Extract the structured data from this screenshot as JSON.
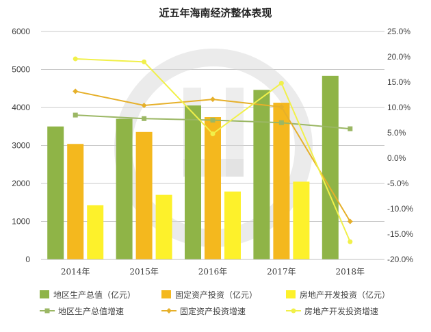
{
  "chart_data": {
    "type": "bar",
    "title": "近五年海南经济整体表现",
    "categories": [
      "2014年",
      "2015年",
      "2016年",
      "2017年",
      "2018年"
    ],
    "ylim_left": [
      0,
      6000
    ],
    "yticks_left": [
      "0",
      "1000",
      "2000",
      "3000",
      "4000",
      "5000",
      "6000"
    ],
    "ylim_right": [
      -20,
      25
    ],
    "yticks_right": [
      "-20.0%",
      "-15.0%",
      "-10.0%",
      "-5.0%",
      "0.0%",
      "5.0%",
      "10.0%",
      "15.0%",
      "20.0%",
      "25.0%"
    ],
    "grid": true,
    "legend_position": "bottom",
    "bar_series": [
      {
        "name": "地区生产总值（亿元）",
        "color": "#8fb447",
        "values": [
          3500,
          3702,
          4053,
          4463,
          4832
        ]
      },
      {
        "name": "固定资产投资（亿元）",
        "color": "#f4b81e",
        "values": [
          3040,
          3355,
          3747,
          4125,
          null
        ]
      },
      {
        "name": "房地产开发投资（亿元）",
        "color": "#fdf12b",
        "values": [
          1426,
          1700,
          1788,
          2047,
          null
        ]
      }
    ],
    "line_series": [
      {
        "name": "地区生产总值增速",
        "color": "#9bb764",
        "marker": "square",
        "values": [
          8.5,
          7.8,
          7.5,
          7.0,
          5.8
        ]
      },
      {
        "name": "固定资产投资增速",
        "color": "#e6b02a",
        "marker": "diamond",
        "values": [
          13.2,
          10.4,
          11.6,
          10.1,
          -12.5
        ]
      },
      {
        "name": "房地产开发投资增速",
        "color": "#f1f04a",
        "marker": "circle",
        "values": [
          19.6,
          19.0,
          4.8,
          14.8,
          -16.5
        ]
      }
    ]
  }
}
